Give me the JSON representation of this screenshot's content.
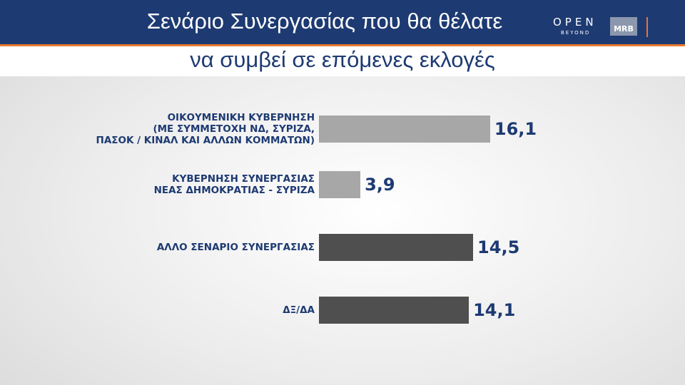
{
  "header": {
    "title": "Σενάριο Συνεργασίας που θα θέλατε",
    "subtitle": "να συμβεί σε επόμενες εκλογές",
    "logo_open": "OPEN",
    "logo_beyond": "BEYOND",
    "logo_mrb": "MRB"
  },
  "chart_data": {
    "type": "bar",
    "orientation": "horizontal",
    "categories": [
      "ΟΙΚΟΥΜΕΝΙΚΗ ΚΥΒΕΡΝΗΣΗ\n(ΜΕ ΣΥΜΜΕΤΟΧΗ ΝΔ, ΣΥΡΙΖΑ,\nΠΑΣΟΚ / ΚΙΝΑΛ ΚΑΙ ΑΛΛΩΝ ΚΟΜΜΑΤΩΝ)",
      "ΚΥΒΕΡΝΗΣΗ ΣΥΝΕΡΓΑΣΙΑΣ\nΝΕΑΣ ΔΗΜΟΚΡΑΤΙΑΣ - ΣΥΡΙΖΑ",
      "ΑΛΛΟ ΣΕΝΑΡΙΟ ΣΥΝΕΡΓΑΣΙΑΣ",
      "ΔΞ/ΔΑ"
    ],
    "values": [
      16.1,
      3.9,
      14.5,
      14.1
    ],
    "value_labels": [
      "16,1",
      "3,9",
      "14,5",
      "14,1"
    ],
    "colors": [
      "#a7a7a7",
      "#a7a7a7",
      "#4f4f4f",
      "#4f4f4f"
    ]
  }
}
